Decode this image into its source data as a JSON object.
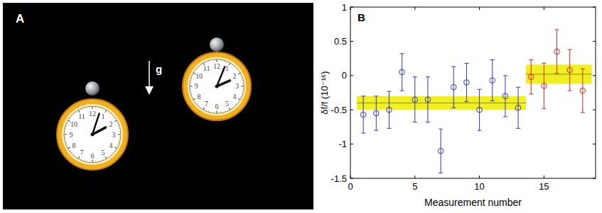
{
  "illustration": {
    "label": "A",
    "gravity_label": "g",
    "numerals": [
      "12",
      "1",
      "2",
      "3",
      "4",
      "5",
      "6",
      "7",
      "8",
      "9",
      "10",
      "11"
    ]
  },
  "chart_data": {
    "type": "scatter",
    "panel_label": "B",
    "x_label": "Measurement number",
    "y_label": "δf/f (10⁻¹⁶)",
    "xlim": [
      0,
      19
    ],
    "xticks": [
      0,
      5,
      10,
      15
    ],
    "ylim": [
      -1.5,
      1
    ],
    "yticks": [
      -1.5,
      -1,
      -0.5,
      0,
      0.5,
      1
    ],
    "grid": false,
    "series": [
      {
        "color": "#3434c8",
        "marker": "circle",
        "x": [
          1,
          2,
          3,
          4,
          5,
          6,
          7,
          8,
          9,
          10,
          11,
          12,
          13
        ],
        "values": [
          -0.57,
          -0.55,
          -0.5,
          0.05,
          -0.35,
          -0.35,
          -1.1,
          -0.17,
          -0.1,
          -0.5,
          -0.07,
          -0.3,
          -0.47
        ],
        "errors": [
          0.27,
          0.25,
          0.27,
          0.27,
          0.33,
          0.33,
          0.32,
          0.3,
          0.28,
          0.3,
          0.3,
          0.3,
          0.3
        ]
      },
      {
        "color": "#e02020",
        "marker": "circle",
        "x": [
          14,
          15,
          16,
          17,
          18
        ],
        "values": [
          -0.02,
          -0.15,
          0.35,
          0.08,
          -0.22
        ],
        "errors": [
          0.25,
          0.33,
          0.32,
          0.3,
          0.32
        ]
      }
    ],
    "bands": [
      {
        "x": [
          0.5,
          13.6
        ],
        "mean": -0.4,
        "error": 0.1,
        "color": "#f0f020"
      },
      {
        "x": [
          13.6,
          18.7
        ],
        "mean": 0.02,
        "error": 0.14,
        "color": "#f0f020"
      }
    ]
  }
}
